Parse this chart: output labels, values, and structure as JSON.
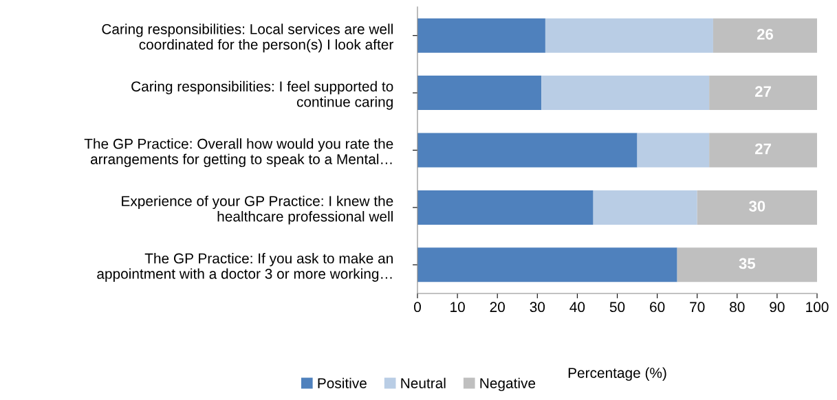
{
  "chart_data": {
    "type": "bar",
    "orientation": "horizontal",
    "stacked": true,
    "categories": [
      "Caring responsibilities: Local services are well\ncoordinated for the person(s) I look after",
      "Caring responsibilities: I feel supported to\ncontinue caring",
      "The GP Practice: Overall how would you rate the\narrangements for getting to speak to a Mental…",
      "Experience of your GP Practice: I knew the\nhealthcare professional well",
      "The GP Practice: If you ask to make an\nappointment with a doctor 3 or more working…"
    ],
    "series": [
      {
        "name": "Positive",
        "color": "#4f81bd",
        "values": [
          32,
          31,
          55,
          44,
          65
        ]
      },
      {
        "name": "Neutral",
        "color": "#b9cde5",
        "values": [
          42,
          42,
          18,
          26,
          0
        ]
      },
      {
        "name": "Negative",
        "color": "#bfbfbf",
        "values": [
          26,
          27,
          27,
          30,
          35
        ],
        "value_labels": [
          "26",
          "27",
          "27",
          "30",
          "35"
        ]
      }
    ],
    "xlabel": "Percentage (%)",
    "xlim": [
      0,
      100
    ],
    "xticks": [
      0,
      10,
      20,
      30,
      40,
      50,
      60,
      70,
      80,
      90,
      100
    ],
    "grid": false,
    "legend": "bottom"
  }
}
